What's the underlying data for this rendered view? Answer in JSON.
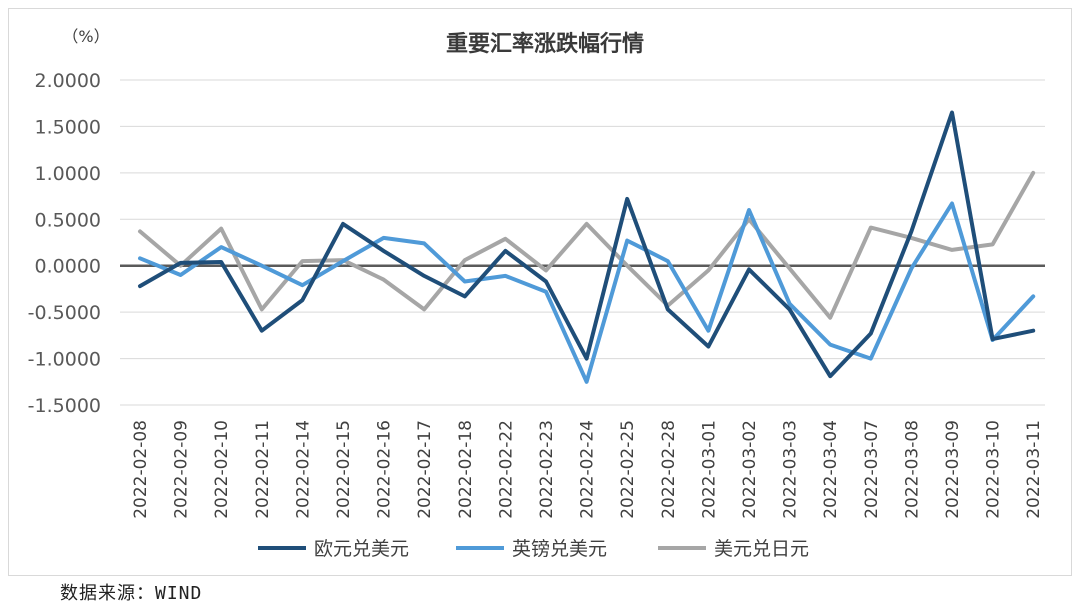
{
  "source_note": "数据来源：WIND",
  "chart_data": {
    "type": "line",
    "title": "重要汇率涨跌幅行情",
    "ylabel": "（%）",
    "ylim": [
      -1.5,
      2.0
    ],
    "yticks": [
      2.0,
      1.5,
      1.0,
      0.5,
      0.0,
      -0.5,
      -1.0,
      -1.5
    ],
    "ytick_labels": [
      "2.0000",
      "1.5000",
      "1.0000",
      "0.5000",
      "0.0000",
      "-0.5000",
      "-1.0000",
      "-1.5000"
    ],
    "grid": true,
    "legend_position": "bottom",
    "categories": [
      "2022-02-08",
      "2022-02-09",
      "2022-02-10",
      "2022-02-11",
      "2022-02-14",
      "2022-02-15",
      "2022-02-16",
      "2022-02-17",
      "2022-02-18",
      "2022-02-22",
      "2022-02-23",
      "2022-02-24",
      "2022-02-25",
      "2022-02-28",
      "2022-03-01",
      "2022-03-02",
      "2022-03-03",
      "2022-03-04",
      "2022-03-07",
      "2022-03-08",
      "2022-03-09",
      "2022-03-10",
      "2022-03-11"
    ],
    "series": [
      {
        "name": "欧元兑美元",
        "color": "#1f4e79",
        "values": [
          -0.22,
          0.03,
          0.04,
          -0.7,
          -0.37,
          0.45,
          0.16,
          -0.11,
          -0.33,
          0.16,
          -0.17,
          -1.0,
          0.72,
          -0.47,
          -0.87,
          -0.04,
          -0.47,
          -1.19,
          -0.73,
          0.37,
          1.65,
          -0.79,
          -0.7
        ]
      },
      {
        "name": "英镑兑美元",
        "color": "#4f9ad8",
        "values": [
          0.08,
          -0.1,
          0.2,
          0.0,
          -0.21,
          0.05,
          0.3,
          0.24,
          -0.17,
          -0.11,
          -0.28,
          -1.25,
          0.27,
          0.05,
          -0.7,
          0.6,
          -0.41,
          -0.85,
          -1.0,
          -0.03,
          0.67,
          -0.8,
          -0.33
        ]
      },
      {
        "name": "美元兑日元",
        "color": "#a6a6a6",
        "values": [
          0.37,
          0.0,
          0.4,
          -0.47,
          0.05,
          0.06,
          -0.15,
          -0.47,
          0.06,
          0.29,
          -0.05,
          0.45,
          0.0,
          -0.43,
          -0.05,
          0.5,
          -0.03,
          -0.56,
          0.41,
          0.3,
          0.17,
          0.23,
          1.0
        ]
      }
    ]
  }
}
